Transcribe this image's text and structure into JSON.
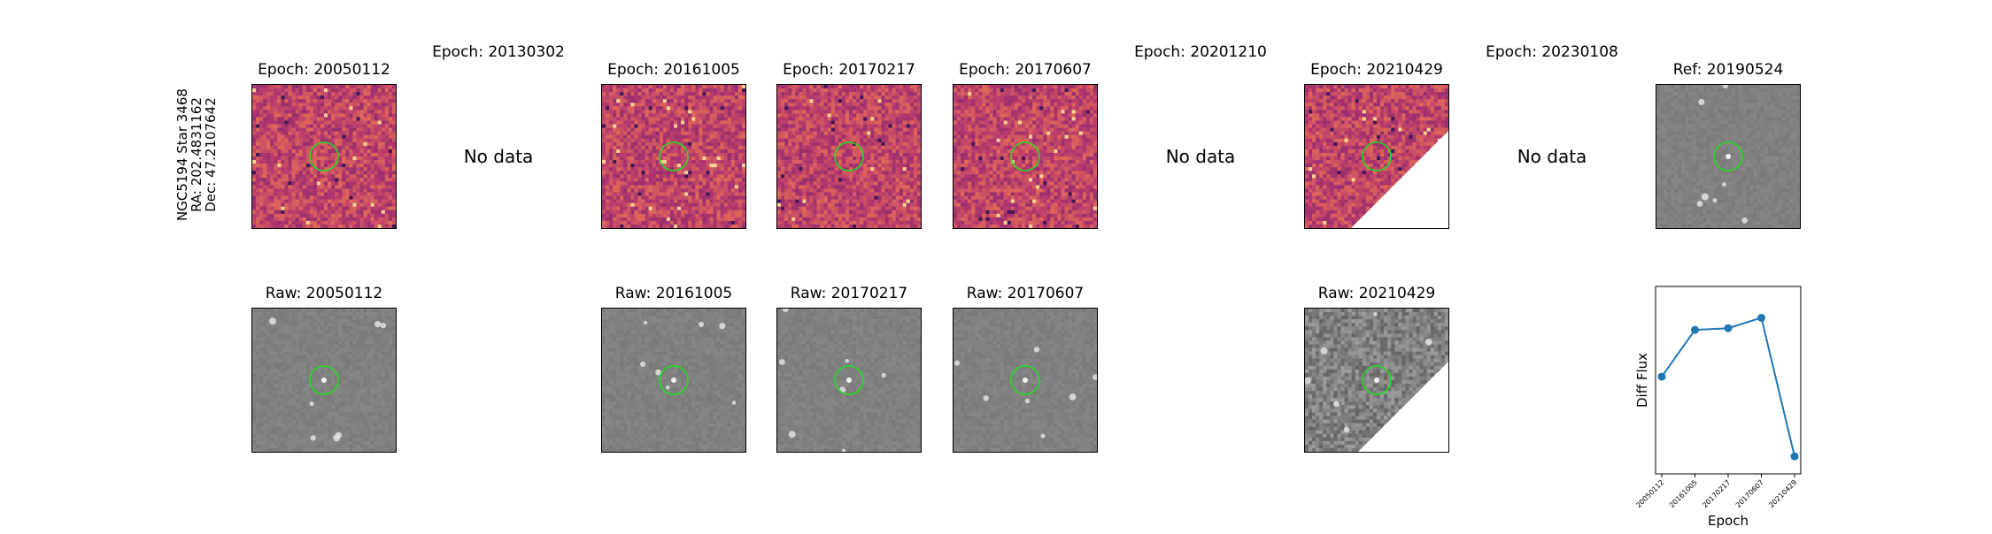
{
  "row_label": {
    "line1": "NGC5194 Star 3468",
    "line2": "RA: 202.4831162",
    "line3": "Dec: 47.2107642"
  },
  "diff_panels": [
    {
      "title": "Epoch: 20050112",
      "has_data": true,
      "colormap": "magma",
      "seed": 11,
      "mask": false
    },
    {
      "title": "Epoch: 20130302",
      "has_data": false,
      "no_data_text": "No data"
    },
    {
      "title": "Epoch: 20161005",
      "has_data": true,
      "colormap": "magma",
      "seed": 23,
      "mask": false
    },
    {
      "title": "Epoch: 20170217",
      "has_data": true,
      "colormap": "magma",
      "seed": 37,
      "mask": false
    },
    {
      "title": "Epoch: 20170607",
      "has_data": true,
      "colormap": "magma",
      "seed": 51,
      "mask": false
    },
    {
      "title": "Epoch: 20201210",
      "has_data": false,
      "no_data_text": "No data"
    },
    {
      "title": "Epoch: 20210429",
      "has_data": true,
      "colormap": "magma",
      "seed": 67,
      "mask": true
    },
    {
      "title": "Epoch: 20230108",
      "has_data": false,
      "no_data_text": "No data"
    },
    {
      "title": "Ref: 20190524",
      "has_data": true,
      "colormap": "gray",
      "seed": 79,
      "mask": false
    }
  ],
  "raw_panels": [
    {
      "title": "Raw: 20050112",
      "has_data": true,
      "colormap": "gray",
      "seed": 13,
      "mask": false
    },
    {
      "title": "",
      "has_data": false,
      "no_data_text": ""
    },
    {
      "title": "Raw: 20161005",
      "has_data": true,
      "colormap": "gray",
      "seed": 29,
      "mask": false
    },
    {
      "title": "Raw: 20170217",
      "has_data": true,
      "colormap": "gray",
      "seed": 41,
      "mask": false
    },
    {
      "title": "Raw: 20170607",
      "has_data": true,
      "colormap": "gray",
      "seed": 53,
      "mask": false
    },
    {
      "title": "",
      "has_data": false,
      "no_data_text": ""
    },
    {
      "title": "Raw: 20210429",
      "has_data": true,
      "colormap": "gray",
      "seed": 71,
      "mask": true,
      "grainy": true
    },
    {
      "title": "",
      "has_data": false,
      "no_data_text": ""
    }
  ],
  "marker_color": "#22dd22",
  "chart_data": {
    "type": "line",
    "title": "",
    "xlabel": "Epoch",
    "ylabel": "Diff Flux",
    "categories": [
      "20050112",
      "20161005",
      "20170217",
      "20170607",
      "20210429"
    ],
    "series": [
      {
        "values": [
          0.52,
          0.79,
          0.8,
          0.86,
          0.06
        ]
      }
    ],
    "ylim": [
      0,
      1
    ],
    "y_ticks_shown": false,
    "grid": false,
    "legend": "none",
    "line_color": "#1f77b4"
  }
}
